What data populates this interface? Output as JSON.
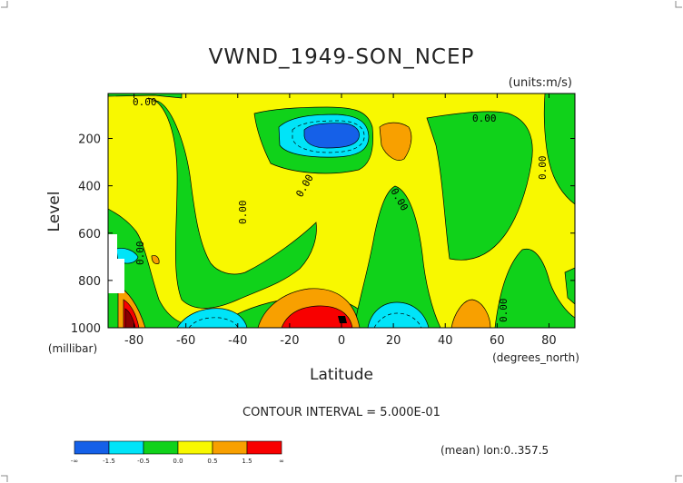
{
  "chart_data": {
    "type": "contour",
    "title": "VWND_1949-SON_NCEP",
    "units": "(units:m/s)",
    "xlabel": "Latitude",
    "x_units": "(degrees_north)",
    "ylabel": "Level",
    "y_units": "(millibar)",
    "xlim": [
      -90,
      90
    ],
    "ylim": [
      1000,
      10
    ],
    "x_ticks": [
      "-80",
      "-60",
      "-40",
      "-20",
      "0",
      "20",
      "40",
      "60",
      "80"
    ],
    "x_tick_values": [
      -80,
      -60,
      -40,
      -20,
      0,
      20,
      40,
      60,
      80
    ],
    "y_ticks": [
      "200",
      "400",
      "600",
      "800",
      "1000"
    ],
    "y_tick_values": [
      200,
      400,
      600,
      800,
      1000
    ],
    "contour_interval_text": "CONTOUR INTERVAL = 5.000E-01",
    "zero_labels": [
      "0.00",
      "0.00",
      "0.00",
      "0.00",
      "0.00",
      "0.00",
      "0.00",
      "0.00"
    ],
    "footer_note": "(mean) lon:0..357.5",
    "colorbar": {
      "colors": [
        "#1560e8",
        "#00e4f8",
        "#10d21a",
        "#f8f800",
        "#f8a000",
        "#f80000"
      ],
      "labels": [
        "-∞",
        "-1.5",
        "-0.5",
        "0.0",
        "0.5",
        "1.5",
        "∞"
      ]
    },
    "features": [
      {
        "kind": "min",
        "lat": -5,
        "level": 170,
        "value": -1.5,
        "note": "upper-level negative core"
      },
      {
        "kind": "max",
        "lat": -5,
        "level": 980,
        "value": 1.5,
        "note": "near-surface positive core"
      },
      {
        "kind": "max",
        "lat": -87,
        "level": 950,
        "value": 1.5
      },
      {
        "kind": "min",
        "lat": -53,
        "level": 980,
        "value": -0.5
      },
      {
        "kind": "min",
        "lat": 23,
        "level": 980,
        "value": -0.5
      },
      {
        "kind": "max",
        "lat": 50,
        "level": 950,
        "value": 0.5
      },
      {
        "kind": "max",
        "lat": 22,
        "level": 150,
        "value": 0.5
      }
    ]
  }
}
